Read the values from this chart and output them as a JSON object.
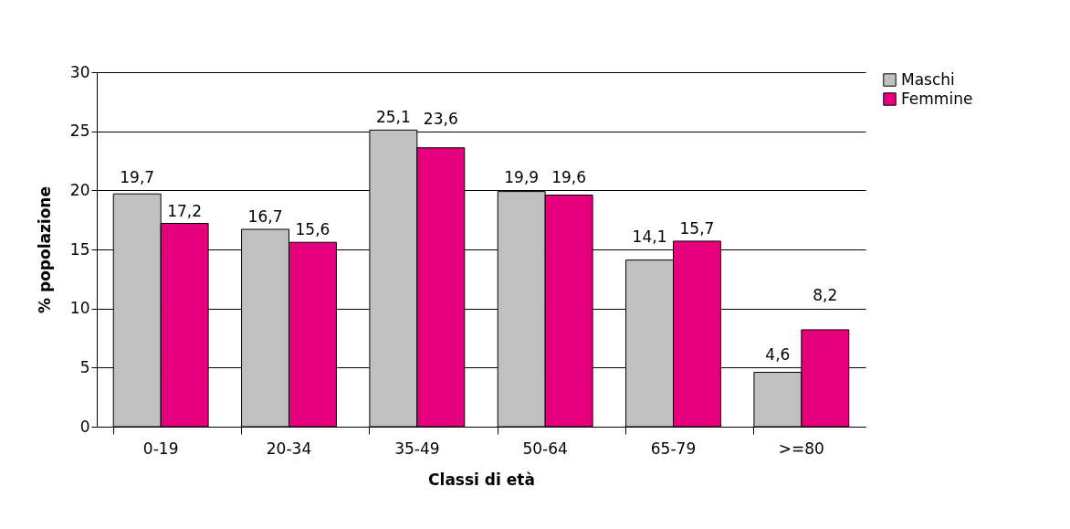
{
  "chart_data": {
    "type": "bar",
    "xlabel": "Classi di età",
    "ylabel": "% popolazione",
    "categories": [
      "0-19",
      "20-34",
      "35-49",
      "50-64",
      "65-79",
      ">=80"
    ],
    "series": [
      {
        "name": "Maschi",
        "color": "#c0c0c0",
        "values": [
          19.7,
          16.7,
          25.1,
          19.9,
          14.1,
          4.6
        ],
        "value_labels": [
          "19,7",
          "16,7",
          "25,1",
          "19,9",
          "14,1",
          "4,6"
        ]
      },
      {
        "name": "Femmine",
        "color": "#e6007e",
        "values": [
          17.2,
          15.6,
          23.6,
          19.6,
          15.7,
          8.2
        ],
        "value_labels": [
          "17,2",
          "15,6",
          "23,6",
          "19,6",
          "15,7",
          "8,2"
        ]
      }
    ],
    "ylim": [
      0,
      30
    ],
    "yticks": [
      0,
      5,
      10,
      15,
      20,
      25,
      30
    ],
    "grid": "y",
    "legend": "right"
  }
}
